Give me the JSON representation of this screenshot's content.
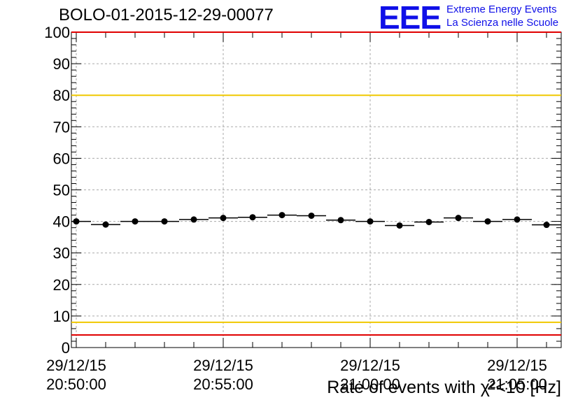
{
  "header": {
    "title": "BOLO-01-2015-12-29-00077",
    "logo_mark": "EEE",
    "logo_line1": "Extreme Energy Events",
    "logo_line2": "La Scienza nelle Scuole"
  },
  "colors": {
    "logo": "#1010e8",
    "upper_threshold": "#f0c800",
    "lower_threshold": "#f0c800",
    "min_threshold": "#e00000",
    "max_line": "#e00000",
    "grid": "#aaaaaa",
    "points": "#000000"
  },
  "chart_data": {
    "type": "scatter",
    "title": "BOLO-01-2015-12-29-00077",
    "xlabel": "Rate of events with χ²<10 [Hz]",
    "ylabel": "",
    "ylim": [
      0,
      100
    ],
    "xlim": [
      "20:49:50",
      "21:06:30"
    ],
    "grid": true,
    "yticks": [
      0,
      10,
      20,
      30,
      40,
      50,
      60,
      70,
      80,
      90,
      100
    ],
    "xticks": [
      {
        "time": "20:50:00",
        "date_label": "29/12/15",
        "time_label": "20:50:00"
      },
      {
        "time": "20:55:00",
        "date_label": "29/12/15",
        "time_label": "20:55:00"
      },
      {
        "time": "21:00:00",
        "date_label": "29/12/15",
        "time_label": "21:00:00"
      },
      {
        "time": "21:05:00",
        "date_label": "29/12/15",
        "time_label": "21:05:00"
      }
    ],
    "bin_width_seconds": 60,
    "series": [
      {
        "points": [
          {
            "x": "20:50:00",
            "y": 40.0
          },
          {
            "x": "20:51:00",
            "y": 39.0
          },
          {
            "x": "20:52:00",
            "y": 40.0
          },
          {
            "x": "20:53:00",
            "y": 40.0
          },
          {
            "x": "20:54:00",
            "y": 40.6
          },
          {
            "x": "20:55:00",
            "y": 41.1
          },
          {
            "x": "20:56:00",
            "y": 41.3
          },
          {
            "x": "20:57:00",
            "y": 42.0
          },
          {
            "x": "20:58:00",
            "y": 41.8
          },
          {
            "x": "20:59:00",
            "y": 40.4
          },
          {
            "x": "21:00:00",
            "y": 40.0
          },
          {
            "x": "21:01:00",
            "y": 38.7
          },
          {
            "x": "21:02:00",
            "y": 39.8
          },
          {
            "x": "21:03:00",
            "y": 41.1
          },
          {
            "x": "21:04:00",
            "y": 40.0
          },
          {
            "x": "21:05:00",
            "y": 40.6
          },
          {
            "x": "21:06:00",
            "y": 38.9
          }
        ]
      }
    ],
    "reference_lines": [
      {
        "y": 100,
        "color": "red"
      },
      {
        "y": 80,
        "color": "yellow"
      },
      {
        "y": 8,
        "color": "yellow"
      },
      {
        "y": 4,
        "color": "red"
      }
    ]
  }
}
